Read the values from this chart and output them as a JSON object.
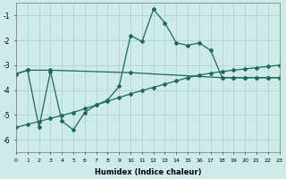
{
  "xlabel": "Humidex (Indice chaleur)",
  "background_color": "#ceeaea",
  "grid_color": "#aacfcf",
  "line_color": "#1a6b5a",
  "xlim": [
    0,
    23
  ],
  "ylim": [
    -6.5,
    -0.5
  ],
  "yticks": [
    -6,
    -5,
    -4,
    -3,
    -2,
    -1
  ],
  "xticks": [
    0,
    1,
    2,
    3,
    4,
    5,
    6,
    7,
    8,
    9,
    10,
    11,
    12,
    13,
    14,
    15,
    16,
    17,
    18,
    19,
    20,
    21,
    22,
    23
  ],
  "curve_x": [
    0,
    1,
    2,
    3,
    4,
    5,
    6,
    7,
    8,
    9,
    10,
    11,
    12,
    13,
    14,
    15,
    16,
    17,
    18,
    19,
    20,
    21,
    22,
    23
  ],
  "curve_y": [
    -3.35,
    -3.2,
    -5.5,
    -3.25,
    -5.25,
    -5.6,
    -4.9,
    -4.6,
    -4.4,
    -3.85,
    -1.8,
    -2.05,
    -0.75,
    -1.3,
    -2.1,
    -2.2,
    -2.1,
    -2.4,
    -3.5,
    -3.5,
    -3.5,
    -3.5,
    -3.5,
    -3.5
  ],
  "flat_x": [
    0,
    1,
    3,
    10,
    18,
    19,
    20,
    21,
    22,
    23
  ],
  "flat_y": [
    -3.35,
    -3.2,
    -3.2,
    -3.3,
    -3.5,
    -3.5,
    -3.5,
    -3.5,
    -3.5,
    -3.5
  ],
  "diag_x": [
    0,
    1,
    2,
    3,
    4,
    5,
    6,
    7,
    8,
    9,
    10,
    11,
    12,
    13,
    14,
    15,
    16,
    17,
    18,
    19,
    20,
    21,
    22,
    23
  ],
  "diag_y": [
    -5.5,
    -5.38,
    -5.26,
    -5.14,
    -5.02,
    -4.9,
    -4.75,
    -4.6,
    -4.45,
    -4.3,
    -4.15,
    -4.02,
    -3.89,
    -3.76,
    -3.63,
    -3.5,
    -3.4,
    -3.32,
    -3.25,
    -3.2,
    -3.15,
    -3.1,
    -3.05,
    -3.0
  ]
}
